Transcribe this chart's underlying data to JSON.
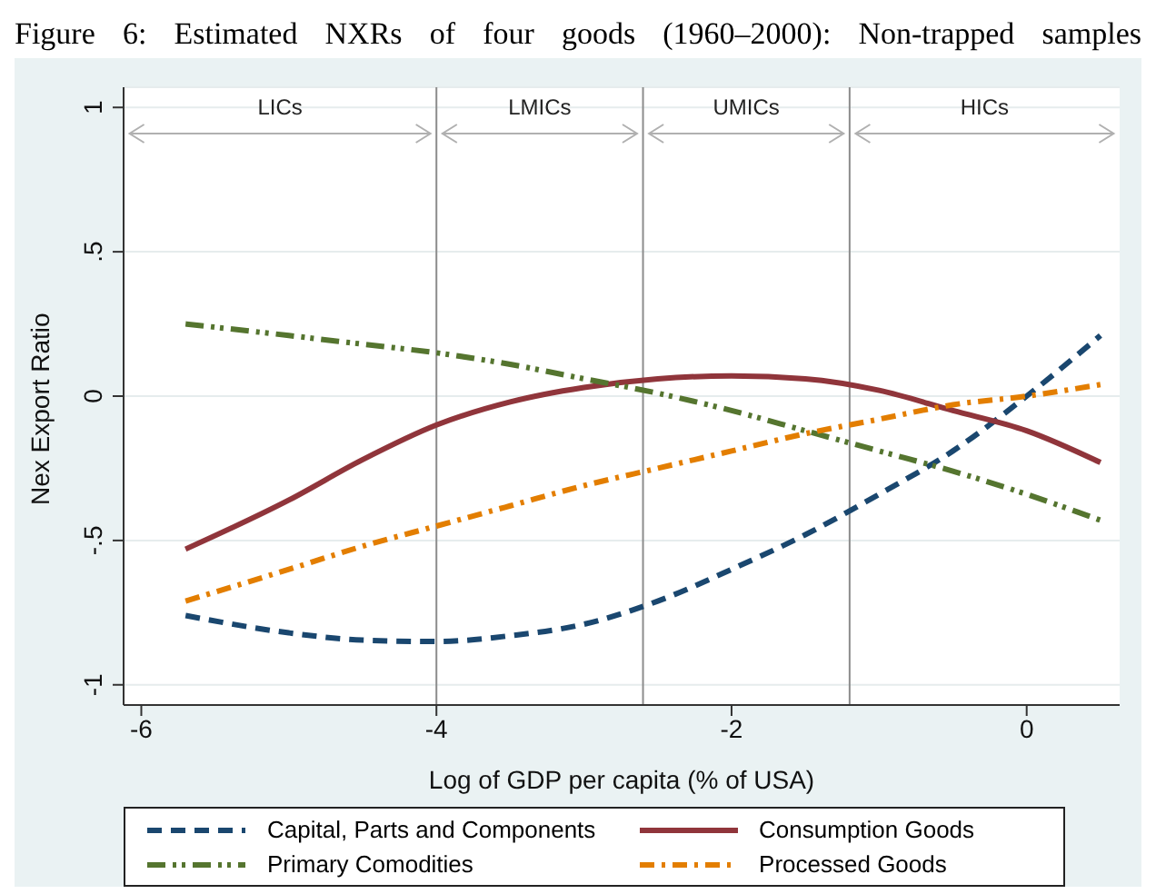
{
  "chart_data": {
    "type": "line",
    "title": "Figure 6: Estimated NXRs of four goods (1960–2000): Non-trapped samples",
    "xlabel": "Log of GDP per capita (% of USA)",
    "ylabel": "Nex Export Ratio",
    "x": [
      -5.7,
      -5,
      -4.5,
      -4,
      -3.5,
      -3,
      -2.5,
      -2,
      -1.5,
      -1,
      -0.5,
      0,
      0.5
    ],
    "series": [
      {
        "name": "Capital, Parts and Components",
        "color": "#1a476f",
        "line_style": "dashed",
        "values": [
          -0.76,
          -0.82,
          -0.845,
          -0.85,
          -0.83,
          -0.79,
          -0.71,
          -0.6,
          -0.48,
          -0.34,
          -0.19,
          0.0,
          0.21
        ]
      },
      {
        "name": "Consumption Goods",
        "color": "#90353b",
        "line_style": "solid",
        "values": [
          -0.53,
          -0.36,
          -0.22,
          -0.1,
          -0.02,
          0.03,
          0.06,
          0.07,
          0.06,
          0.02,
          -0.05,
          -0.12,
          -0.23
        ]
      },
      {
        "name": "Primary Comodities",
        "color": "#55752f",
        "line_style": "dashdotdot",
        "values": [
          0.25,
          0.21,
          0.18,
          0.15,
          0.11,
          0.06,
          0.01,
          -0.05,
          -0.12,
          -0.19,
          -0.26,
          -0.34,
          -0.43
        ]
      },
      {
        "name": "Processed Goods",
        "color": "#e37e00",
        "line_style": "dashdot",
        "values": [
          -0.71,
          -0.6,
          -0.52,
          -0.45,
          -0.38,
          -0.31,
          -0.25,
          -0.19,
          -0.13,
          -0.08,
          -0.03,
          0.0,
          0.04
        ]
      }
    ],
    "xlim": [
      -6.12,
      0.63
    ],
    "xticks": [
      -6,
      -4,
      -2,
      0
    ],
    "ylim": [
      -1.07,
      1.07
    ],
    "yticks": [
      {
        "value": -1,
        "label": "-1"
      },
      {
        "value": -0.5,
        "label": "-.5"
      },
      0,
      {
        "value": 0.5,
        "label": ".5"
      },
      1
    ],
    "ref_lines": [
      {
        "axis": "x",
        "value": -4,
        "color": "#8c8c8c"
      },
      {
        "axis": "x",
        "value": -2.6,
        "color": "#8c8c8c"
      },
      {
        "axis": "x",
        "value": -1.2,
        "color": "#8c8c8c"
      }
    ],
    "annotations": [
      "LICs",
      "LMICs",
      "UMICs",
      "HICs"
    ],
    "grid": "y",
    "legend": "bottom",
    "marker": "none"
  }
}
